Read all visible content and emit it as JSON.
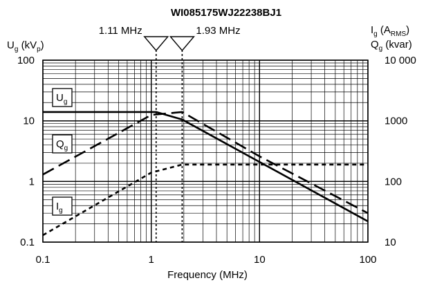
{
  "chart_data": {
    "type": "line",
    "title": "WI085175WJ22238BJ1",
    "xlabel": "Frequency (MHz)",
    "x_scale": "log",
    "xlim": [
      0.1,
      100
    ],
    "x_ticks": [
      "0.1",
      "1",
      "10",
      "100"
    ],
    "left_axis": {
      "label_main": "U",
      "label_sub": "g",
      "label_unit_pre": " (kV",
      "label_unit_sub": "p",
      "label_unit_post": ")",
      "scale": "log",
      "lim": [
        0.1,
        100
      ],
      "ticks": [
        "100",
        "10",
        "1",
        "0.1"
      ]
    },
    "right_axis": {
      "label1_main": "I",
      "label1_sub": "g",
      "label1_unit_pre": " (A",
      "label1_unit_sub": "RMS",
      "label1_unit_post": ")",
      "label2_main": "Q",
      "label2_sub": "g",
      "label2_unit": " (kvar)",
      "scale": "log",
      "lim": [
        10,
        10000
      ],
      "ticks": [
        "10 000",
        "1000",
        "100",
        "10"
      ]
    },
    "markers": [
      {
        "label": "1.11 MHz",
        "x": 1.11
      },
      {
        "label": "1.93 MHz",
        "x": 1.93
      }
    ],
    "series": [
      {
        "name": "U",
        "sub": "g",
        "style": "solid",
        "axis": "left",
        "points": [
          [
            0.1,
            14
          ],
          [
            1.11,
            14
          ],
          [
            1.93,
            10.5
          ],
          [
            10,
            2.1
          ],
          [
            100,
            0.22
          ]
        ]
      },
      {
        "name": "Q",
        "sub": "g",
        "style": "long-dash",
        "axis": "left",
        "points": [
          [
            0.1,
            1.3
          ],
          [
            1,
            12.5
          ],
          [
            1.93,
            14
          ],
          [
            10,
            2.6
          ],
          [
            100,
            0.3
          ]
        ]
      },
      {
        "name": "I",
        "sub": "g",
        "style": "short-dash",
        "axis": "left",
        "points": [
          [
            0.1,
            0.13
          ],
          [
            1,
            1.4
          ],
          [
            1.93,
            1.9
          ],
          [
            100,
            1.9
          ]
        ]
      }
    ]
  }
}
